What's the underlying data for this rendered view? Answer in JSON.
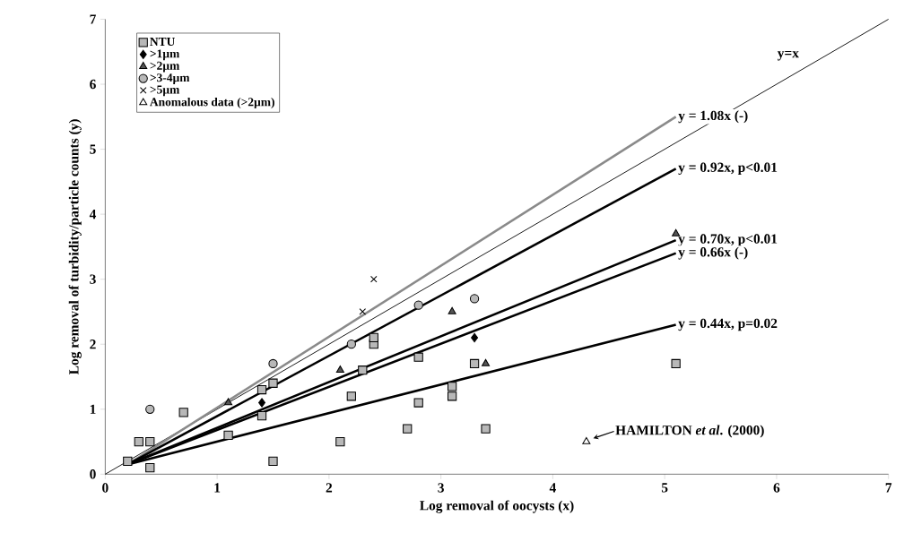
{
  "chart_data": {
    "type": "scatter",
    "xlabel": "Log removal of oocysts (x)",
    "ylabel": "Log removal of turbidity/particle counts (y)",
    "xlim": [
      0,
      7
    ],
    "ylim": [
      0,
      7
    ],
    "xticks": [
      0,
      1,
      2,
      3,
      4,
      5,
      6,
      7
    ],
    "yticks": [
      0,
      1,
      2,
      3,
      4,
      5,
      6,
      7
    ],
    "legend": "top left",
    "annotations": [
      {
        "text": "HAMILTON *et al*. (2000)",
        "x": 4.3,
        "y": 0.5
      }
    ],
    "series": [
      {
        "name": "NTU",
        "color": "#b8b8b8",
        "marker": "square",
        "x": [
          0.2,
          0.3,
          0.4,
          0.4,
          0.7,
          1.1,
          1.4,
          1.4,
          1.5,
          1.5,
          2.1,
          2.2,
          2.3,
          2.4,
          2.4,
          2.7,
          2.8,
          2.8,
          3.1,
          3.1,
          3.3,
          3.4,
          5.1
        ],
        "values": [
          0.2,
          0.5,
          0.5,
          0.1,
          0.95,
          0.6,
          0.9,
          1.3,
          1.4,
          0.2,
          0.5,
          1.2,
          1.6,
          2.0,
          2.1,
          0.7,
          1.1,
          1.8,
          1.2,
          1.35,
          1.7,
          0.7,
          1.7
        ]
      },
      {
        "name": ">1µm",
        "color": "#000000",
        "marker": "diamond",
        "x": [
          1.4,
          3.3
        ],
        "values": [
          1.1,
          2.1
        ]
      },
      {
        "name": ">2µm",
        "color": "#555555",
        "marker": "triangle",
        "x": [
          1.1,
          2.1,
          3.1,
          3.4,
          5.1
        ],
        "values": [
          1.1,
          1.6,
          2.5,
          1.7,
          3.7
        ]
      },
      {
        "name": ">3-4µm",
        "color": "#b8b8b8",
        "marker": "circle",
        "x": [
          0.4,
          1.5,
          2.2,
          2.8,
          3.3
        ],
        "values": [
          1.0,
          1.7,
          2.0,
          2.6,
          2.7
        ]
      },
      {
        "name": ">5µm",
        "color": "#000000",
        "marker": "cross",
        "x": [
          2.3,
          2.4
        ],
        "values": [
          2.5,
          3.0
        ]
      },
      {
        "name": "Anomalous data (>2µm)",
        "color": "#ffffff",
        "marker": "triangle",
        "x": [
          4.3
        ],
        "values": [
          0.5
        ]
      },
      {
        "name": "y=x",
        "type": "line",
        "color": "#000000",
        "marker": "none",
        "x": [
          0,
          7
        ],
        "values": [
          0,
          7
        ]
      },
      {
        "name": "y = 1.08x (-)",
        "type": "line",
        "color": "#8a8a8a",
        "marker": "none",
        "x": [
          0.2,
          5.1
        ],
        "values": [
          0.15,
          5.5
        ]
      },
      {
        "name": "y = 0.92x, p<0.01",
        "type": "line",
        "color": "#000000",
        "marker": "none",
        "x": [
          0.2,
          5.1
        ],
        "values": [
          0.15,
          4.7
        ]
      },
      {
        "name": "y = 0.70x, p<0.01",
        "type": "line",
        "color": "#000000",
        "marker": "none",
        "x": [
          0.2,
          5.1
        ],
        "values": [
          0.15,
          3.6
        ]
      },
      {
        "name": "y = 0.66x (-)",
        "type": "line",
        "color": "#000000",
        "marker": "none",
        "x": [
          0.2,
          5.1
        ],
        "values": [
          0.15,
          3.4
        ]
      },
      {
        "name": "y = 0.44x, p=0.02",
        "type": "line",
        "color": "#000000",
        "marker": "none",
        "x": [
          0.2,
          5.1
        ],
        "values": [
          0.15,
          2.3
        ]
      }
    ]
  }
}
